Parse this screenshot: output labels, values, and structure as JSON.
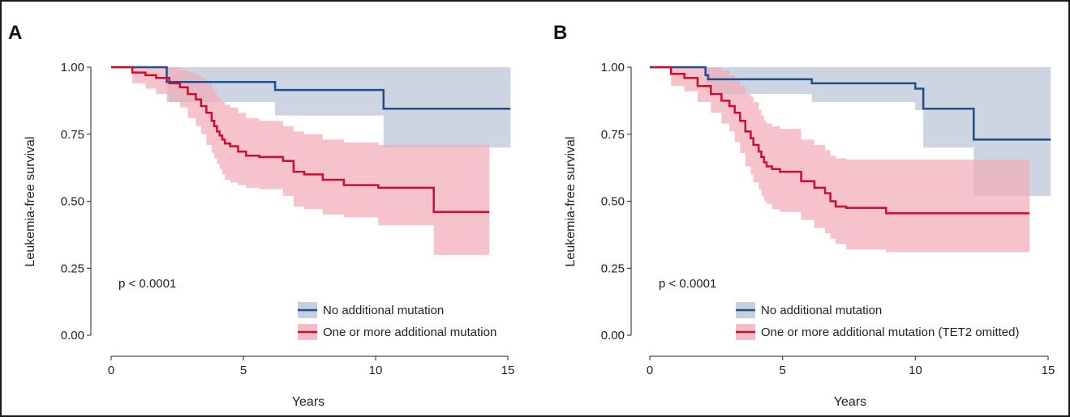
{
  "colors": {
    "series_no_mutation": "#1f4e8c",
    "band_no_mutation": "#b7c3d4",
    "series_mutation": "#c8102e",
    "band_mutation": "#f2aab8"
  },
  "panels": [
    {
      "label": "A"
    },
    {
      "label": "B"
    }
  ],
  "chart_data": [
    {
      "type": "line",
      "panel": "A",
      "xlabel": "Years",
      "ylabel": "Leukemia-free survival",
      "xlim": [
        0,
        15
      ],
      "ylim": [
        0,
        1
      ],
      "xticks": [
        "0",
        "5",
        "10",
        "15"
      ],
      "yticks": [
        "0.00",
        "0.25",
        "0.50",
        "0.75",
        "1.00"
      ],
      "annotation": "p < 0.0001",
      "legend_position": "bottom-right",
      "grid": false,
      "series": [
        {
          "name": "No additional mutation",
          "step_x": [
            0,
            2.1,
            6.2,
            10.3,
            15.1
          ],
          "step_y": [
            1.0,
            0.945,
            0.915,
            0.845,
            0.845
          ],
          "ci_lower": [
            1.0,
            0.87,
            0.82,
            0.7,
            0.7
          ],
          "ci_upper": [
            1.0,
            1.0,
            1.0,
            1.0,
            1.0
          ]
        },
        {
          "name": "One or more additional mutation",
          "step_x": [
            0,
            0.8,
            1.3,
            1.7,
            2.2,
            2.6,
            2.9,
            3.2,
            3.4,
            3.6,
            3.8,
            3.9,
            4.0,
            4.1,
            4.2,
            4.3,
            4.5,
            4.8,
            5.1,
            5.6,
            6.5,
            6.9,
            7.3,
            8.0,
            8.8,
            10.1,
            12.2,
            14.3
          ],
          "step_y": [
            1.0,
            0.98,
            0.97,
            0.96,
            0.94,
            0.925,
            0.9,
            0.88,
            0.855,
            0.83,
            0.8,
            0.78,
            0.76,
            0.745,
            0.73,
            0.715,
            0.705,
            0.685,
            0.67,
            0.665,
            0.65,
            0.61,
            0.6,
            0.58,
            0.56,
            0.55,
            0.46,
            0.46
          ],
          "ci_lower": [
            1.0,
            0.94,
            0.92,
            0.9,
            0.87,
            0.85,
            0.81,
            0.78,
            0.75,
            0.71,
            0.68,
            0.66,
            0.64,
            0.62,
            0.6,
            0.58,
            0.57,
            0.56,
            0.55,
            0.545,
            0.52,
            0.48,
            0.47,
            0.45,
            0.44,
            0.41,
            0.3,
            0.3
          ],
          "ci_upper": [
            1.0,
            1.0,
            1.0,
            1.0,
            1.0,
            0.99,
            0.98,
            0.97,
            0.96,
            0.94,
            0.92,
            0.91,
            0.89,
            0.88,
            0.87,
            0.86,
            0.85,
            0.83,
            0.81,
            0.8,
            0.78,
            0.76,
            0.75,
            0.73,
            0.72,
            0.71,
            0.71,
            0.71
          ]
        }
      ]
    },
    {
      "type": "line",
      "panel": "B",
      "xlabel": "Years",
      "ylabel": "Leukemia-free survival",
      "xlim": [
        0,
        15
      ],
      "ylim": [
        0,
        1
      ],
      "xticks": [
        "0",
        "5",
        "10",
        "15"
      ],
      "yticks": [
        "0.00",
        "0.25",
        "0.50",
        "0.75",
        "1.00"
      ],
      "annotation": "p < 0.0001",
      "legend_position": "bottom-right",
      "grid": false,
      "series": [
        {
          "name": "No additional mutation",
          "step_x": [
            0,
            2.1,
            2.2,
            6.1,
            10.0,
            10.3,
            12.2,
            15.1
          ],
          "step_y": [
            1.0,
            0.97,
            0.955,
            0.94,
            0.92,
            0.845,
            0.73,
            0.73
          ],
          "ci_lower": [
            1.0,
            0.91,
            0.9,
            0.87,
            0.84,
            0.7,
            0.52,
            0.52
          ],
          "ci_upper": [
            1.0,
            1.0,
            1.0,
            1.0,
            1.0,
            1.0,
            1.0,
            1.0
          ]
        },
        {
          "name": "One or more additional mutation (TET2 omitted)",
          "step_x": [
            0,
            0.8,
            1.3,
            1.8,
            2.3,
            2.7,
            3.0,
            3.2,
            3.4,
            3.6,
            3.8,
            3.9,
            4.1,
            4.2,
            4.3,
            4.4,
            4.6,
            4.9,
            5.7,
            6.2,
            6.6,
            6.8,
            7.0,
            7.4,
            8.9,
            14.3
          ],
          "step_y": [
            1.0,
            0.975,
            0.96,
            0.93,
            0.9,
            0.875,
            0.855,
            0.83,
            0.8,
            0.76,
            0.735,
            0.71,
            0.685,
            0.665,
            0.645,
            0.63,
            0.62,
            0.61,
            0.575,
            0.55,
            0.53,
            0.5,
            0.48,
            0.475,
            0.455,
            0.455
          ],
          "ci_lower": [
            1.0,
            0.93,
            0.91,
            0.87,
            0.83,
            0.79,
            0.76,
            0.72,
            0.68,
            0.63,
            0.6,
            0.57,
            0.545,
            0.52,
            0.5,
            0.49,
            0.47,
            0.46,
            0.43,
            0.4,
            0.38,
            0.36,
            0.34,
            0.32,
            0.31,
            0.31
          ],
          "ci_upper": [
            1.0,
            1.0,
            1.0,
            1.0,
            1.0,
            0.99,
            0.97,
            0.95,
            0.93,
            0.9,
            0.89,
            0.87,
            0.84,
            0.82,
            0.8,
            0.79,
            0.78,
            0.77,
            0.73,
            0.71,
            0.69,
            0.67,
            0.66,
            0.655,
            0.655,
            0.655
          ]
        }
      ]
    }
  ]
}
